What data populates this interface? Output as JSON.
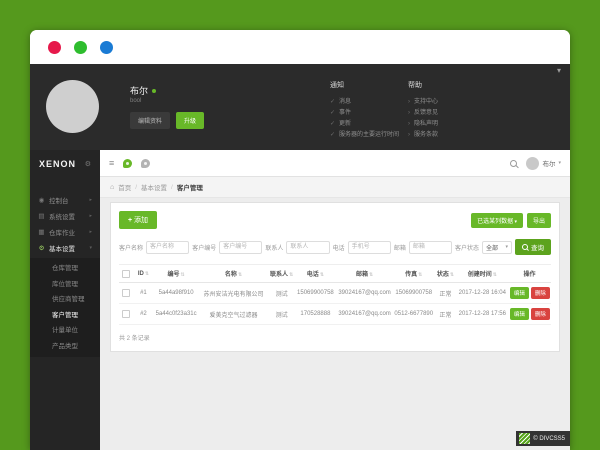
{
  "colors": {
    "accent": "#68b828",
    "danger": "#d9433f",
    "page_bg": "#55991d"
  },
  "window_controls": {
    "dots": [
      {
        "name": "close-dot",
        "color": "#e6194b"
      },
      {
        "name": "minimize-dot",
        "color": "#2ebd2e"
      },
      {
        "name": "maximize-dot",
        "color": "#1a7bd4"
      }
    ]
  },
  "profile": {
    "name": "布尔",
    "username": "bool",
    "edit_button": "编辑资料",
    "upgrade_button": "升级"
  },
  "notifications": {
    "title": "通知",
    "items": [
      "消息",
      "事件",
      "更新",
      "服务器的主要运行时间"
    ]
  },
  "help": {
    "title": "帮助",
    "items": [
      "支持中心",
      "反馈意见",
      "隐私声明",
      "服务条款"
    ]
  },
  "sidebar": {
    "logo": "XENON",
    "items": [
      {
        "label": "控制台",
        "icon": "gauge-icon",
        "expanded": false
      },
      {
        "label": "系统设置",
        "icon": "monitor-icon",
        "expanded": false
      },
      {
        "label": "仓库作业",
        "icon": "boxes-icon",
        "expanded": false
      },
      {
        "label": "基本设置",
        "icon": "gear-icon",
        "expanded": true
      }
    ],
    "submenu": [
      {
        "label": "仓库管理",
        "active": false
      },
      {
        "label": "库位管理",
        "active": false
      },
      {
        "label": "供应商管理",
        "active": false
      },
      {
        "label": "客户管理",
        "active": true
      },
      {
        "label": "计量单位",
        "active": false
      },
      {
        "label": "产品类型",
        "active": false
      }
    ]
  },
  "topbar": {
    "user": "布尔"
  },
  "breadcrumb": {
    "home": "首页",
    "section": "基本设置",
    "current": "客户管理"
  },
  "toolbar": {
    "add_button": "添加",
    "columns_button": "已选某列数据",
    "export_button": "导出"
  },
  "filters": {
    "fields": [
      {
        "label": "客户名称",
        "placeholder": "客户名称"
      },
      {
        "label": "客户编号",
        "placeholder": "客户编号"
      },
      {
        "label": "联系人",
        "placeholder": "联系人"
      },
      {
        "label": "电话",
        "placeholder": "手机号"
      },
      {
        "label": "邮箱",
        "placeholder": "邮箱"
      }
    ],
    "status": {
      "label": "客户状态",
      "value": "全部"
    },
    "query_button": "查询"
  },
  "table": {
    "headers": [
      "ID",
      "编号",
      "名称",
      "联系人",
      "电话",
      "邮箱",
      "传真",
      "状态",
      "创建时间",
      "操作"
    ],
    "rows": [
      {
        "id": "#1",
        "code": "5a44a98f910",
        "name": "苏州安洁光电有限公司",
        "contact": "测试",
        "phone": "15069900758",
        "email": "39024167@qq.com",
        "fax": "15069900758",
        "status": "正常",
        "created": "2017-12-28 16:04"
      },
      {
        "id": "#2",
        "code": "5a44c0f23a31c",
        "name": "爱美克空气过滤器",
        "contact": "测试",
        "phone": "170528888",
        "email": "39024167@qq.com",
        "fax": "0512-6677890",
        "status": "正常",
        "created": "2017-12-28 17:56"
      }
    ],
    "edit_button": "编辑",
    "delete_button": "删除"
  },
  "table_footer": {
    "total": "共 2 条记录"
  },
  "watermark": {
    "text": "© DIVCSS5"
  }
}
